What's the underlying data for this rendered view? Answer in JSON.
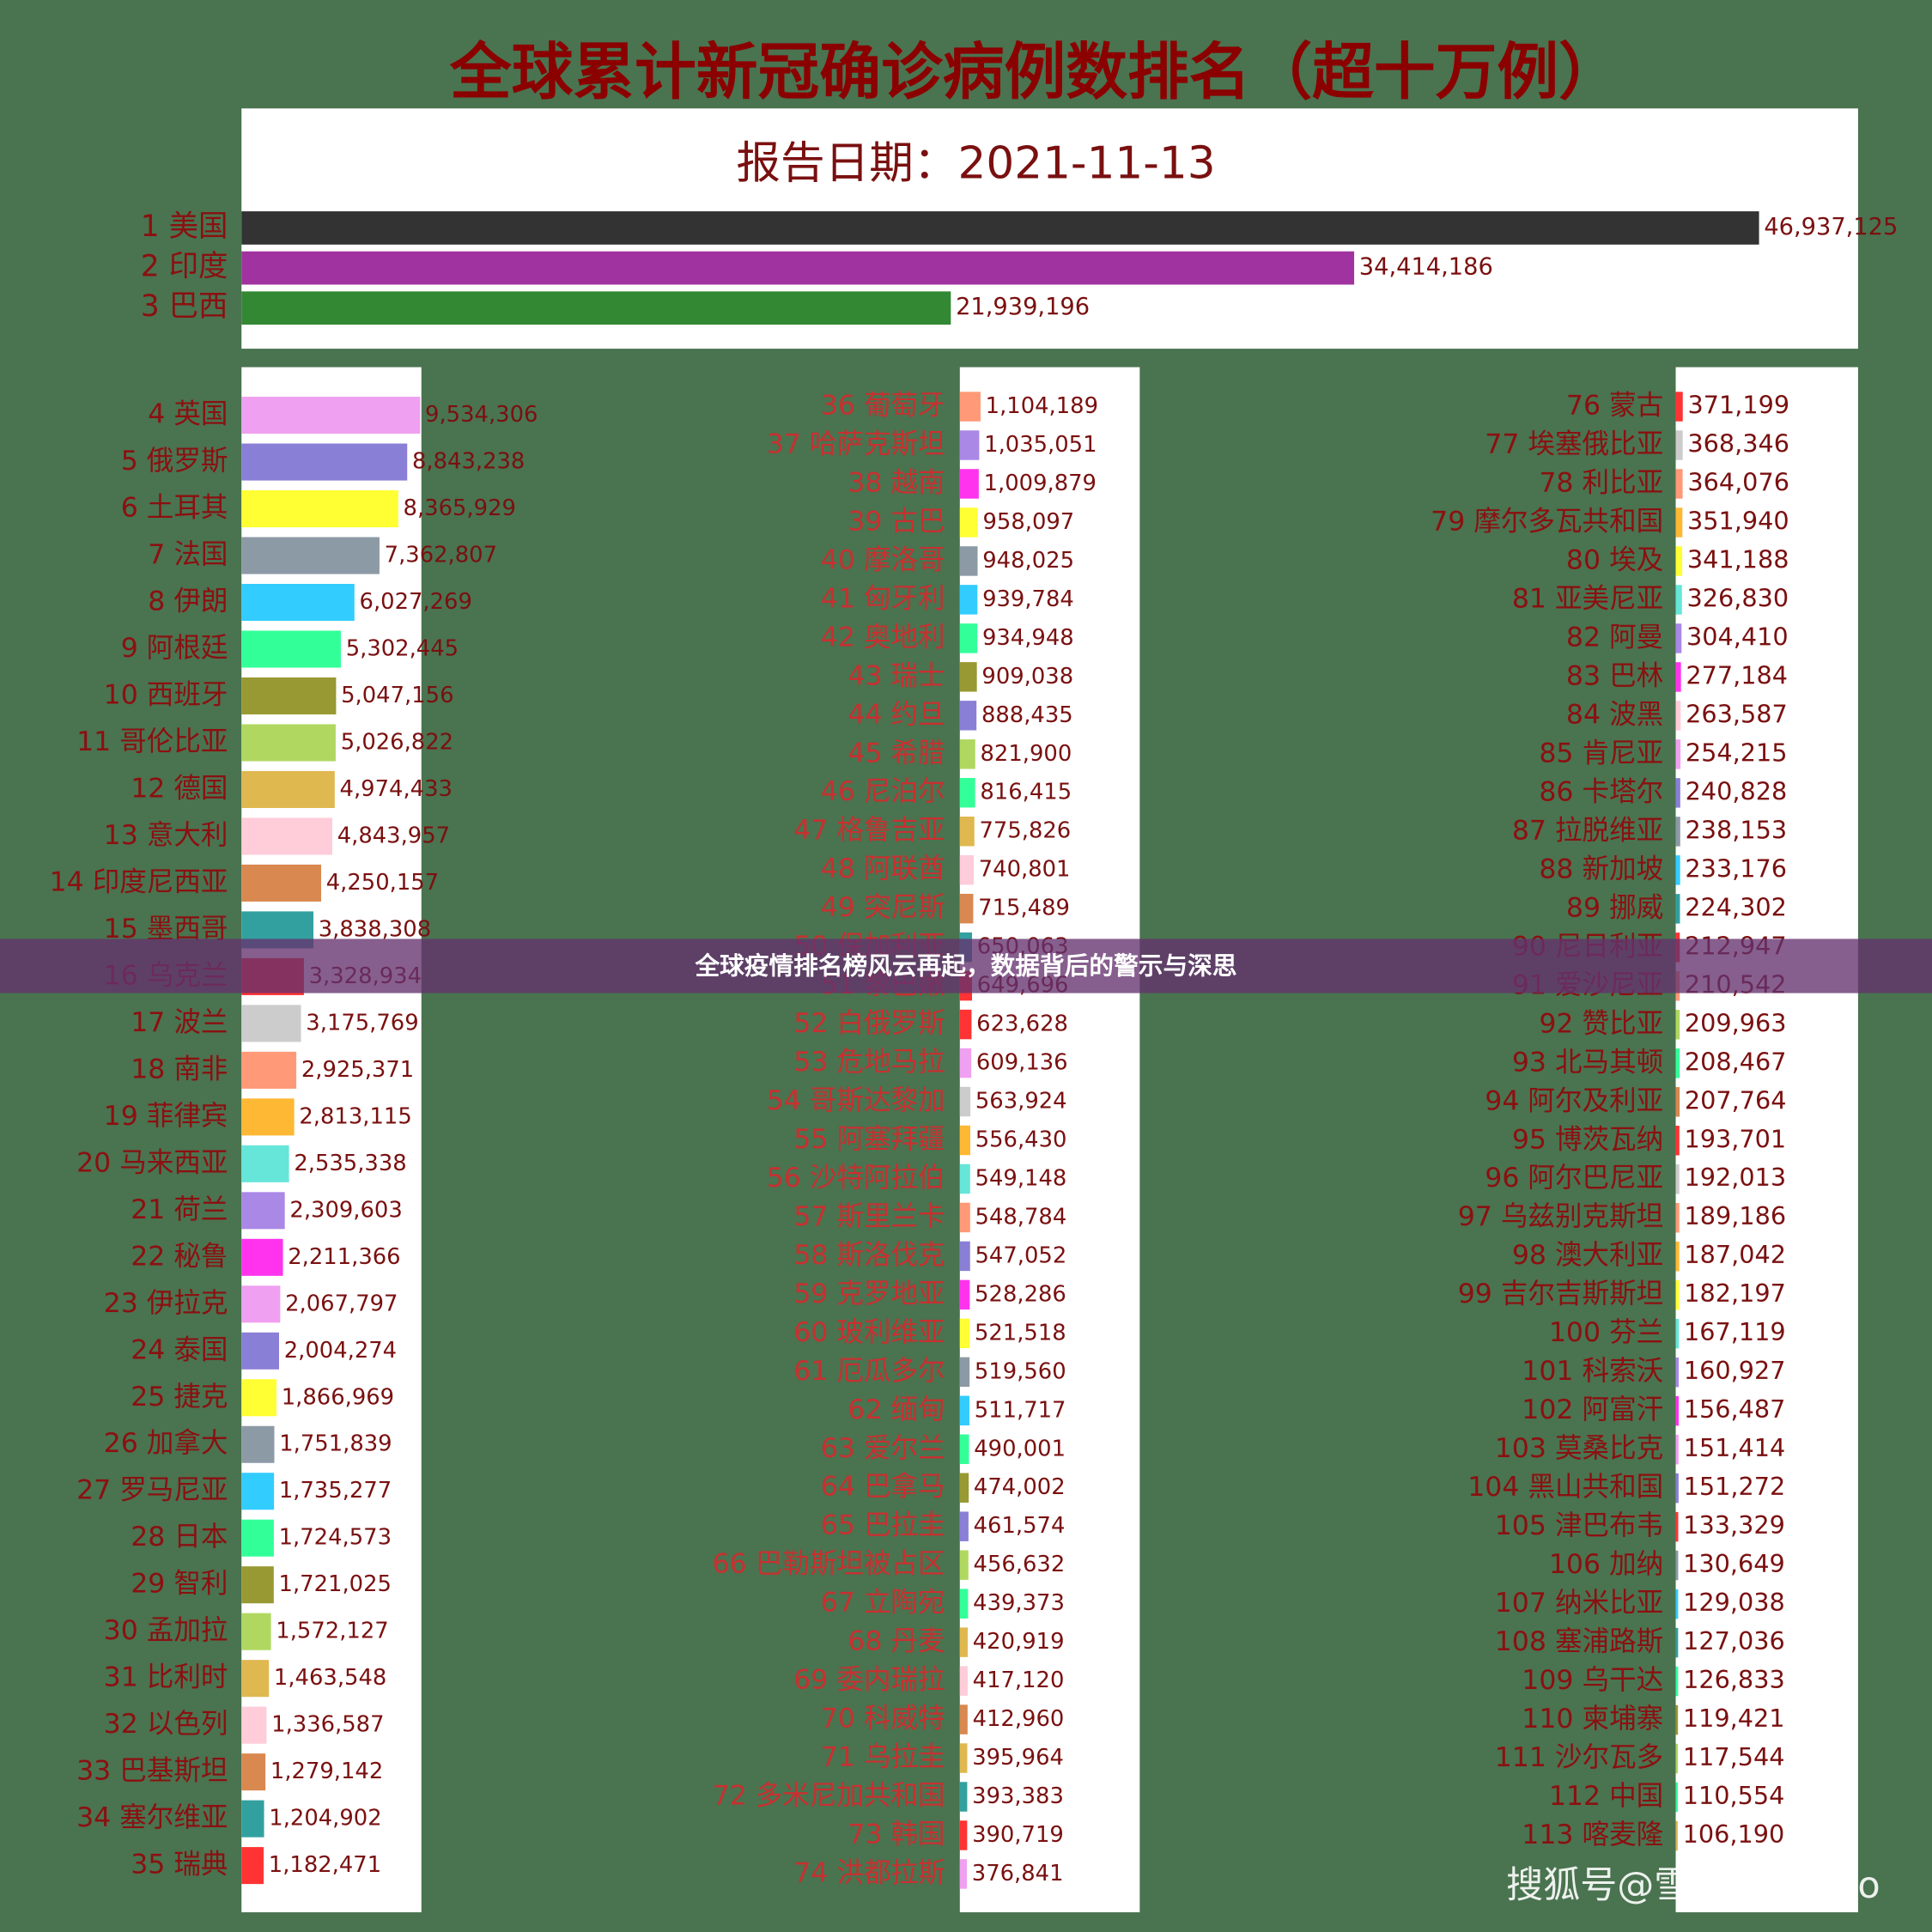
{
  "chart_data": [
    {
      "type": "bar",
      "orientation": "horizontal",
      "title": "全球累计新冠确诊病例数排名（超十万例）",
      "subtitle": "报告日期：2021-11-13",
      "categories": [
        "1 美国",
        "2 印度",
        "3 巴西"
      ],
      "values": [
        46937125,
        34414186,
        21939196
      ],
      "value_labels": [
        "46,937,125",
        "34,414,186",
        "21,939,196"
      ],
      "colors": [
        "#333333",
        "#a033a0",
        "#338833"
      ],
      "xlim": [
        0,
        50000000
      ]
    },
    {
      "type": "bar",
      "orientation": "horizontal",
      "categories": [
        "4 英国",
        "5 俄罗斯",
        "6 土耳其",
        "7 法国",
        "8 伊朗",
        "9 阿根廷",
        "10 西班牙",
        "11 哥伦比亚",
        "12 德国",
        "13 意大利",
        "14 印度尼西亚",
        "15 墨西哥",
        "16 乌克兰",
        "17 波兰",
        "18 南非",
        "19 菲律宾",
        "20 马来西亚",
        "21 荷兰",
        "22 秘鲁",
        "23 伊拉克",
        "24 泰国",
        "25 捷克",
        "26 加拿大",
        "27 罗马尼亚",
        "28 日本",
        "29 智利",
        "30 孟加拉",
        "31 比利时",
        "32 以色列",
        "33 巴基斯坦",
        "34 塞尔维亚",
        "35 瑞典"
      ],
      "values": [
        9534306,
        8843238,
        8365929,
        7362807,
        6027269,
        5302445,
        5047156,
        5026822,
        4974433,
        4843957,
        4250157,
        3838308,
        3328934,
        3175769,
        2925371,
        2813115,
        2535338,
        2309603,
        2211366,
        2067797,
        2004274,
        1866969,
        1751839,
        1735277,
        1724573,
        1721025,
        1572127,
        1463548,
        1336587,
        1279142,
        1204902,
        1182471
      ],
      "value_labels": [
        "9,534,306",
        "8,843,238",
        "8,365,929",
        "7,362,807",
        "6,027,269",
        "5,302,445",
        "5,047,156",
        "5,026,822",
        "4,974,433",
        "4,843,957",
        "4,250,157",
        "3,838,308",
        "3,328,934",
        "3,175,769",
        "2,925,371",
        "2,813,115",
        "2,535,338",
        "2,309,603",
        "2,211,366",
        "2,067,797",
        "2,004,274",
        "1,866,969",
        "1,751,839",
        "1,735,277",
        "1,724,573",
        "1,721,025",
        "1,572,127",
        "1,463,548",
        "1,336,587",
        "1,279,142",
        "1,204,902",
        "1,182,471"
      ],
      "colors": [
        "#f0a0f0",
        "#8a7fd6",
        "#ffff33",
        "#8c9aa6",
        "#33ccff",
        "#33ff99",
        "#999933",
        "#b0d860",
        "#e0b850",
        "#ffccd9",
        "#d98850",
        "#33a0a0",
        "#ff3333",
        "#cccccc",
        "#ff9977",
        "#ffb833",
        "#66e6d9",
        "#aa88e6",
        "#ff33ee",
        "#f0a0f0",
        "#8a7fd6",
        "#ffff33",
        "#8c9aa6",
        "#33ccff",
        "#33ff99",
        "#999933",
        "#b0d860",
        "#e0b850",
        "#ffccd9",
        "#d98850",
        "#33a0a0",
        "#ff3333"
      ],
      "xlim": [
        0,
        9600000
      ]
    },
    {
      "type": "bar",
      "orientation": "horizontal",
      "categories": [
        "36 葡萄牙",
        "37 哈萨克斯坦",
        "38 越南",
        "39 古巴",
        "40 摩洛哥",
        "41 匈牙利",
        "42 奥地利",
        "43 瑞士",
        "44 约旦",
        "45 希腊",
        "46 尼泊尔",
        "47 格鲁吉亚",
        "48 阿联酋",
        "49 突尼斯",
        "50 保加利亚",
        "51 黎巴嫩",
        "52 白俄罗斯",
        "53 危地马拉",
        "54 哥斯达黎加",
        "55 阿塞拜疆",
        "56 沙特阿拉伯",
        "57 斯里兰卡",
        "58 斯洛伐克",
        "59 克罗地亚",
        "60 玻利维亚",
        "61 厄瓜多尔",
        "62 缅甸",
        "63 爱尔兰",
        "64 巴拿马",
        "65 巴拉圭",
        "66 巴勒斯坦被占区",
        "67 立陶宛",
        "68 丹麦",
        "69 委内瑞拉",
        "70 科威特",
        "71 乌拉圭",
        "72 多米尼加共和国",
        "73 韩国",
        "74 洪都拉斯"
      ],
      "values": [
        1104189,
        1035051,
        1009879,
        958097,
        948025,
        939784,
        934948,
        909038,
        888435,
        821900,
        816415,
        775826,
        740801,
        715489,
        650063,
        649696,
        623628,
        609136,
        563924,
        556430,
        549148,
        548784,
        547052,
        528286,
        521518,
        519560,
        511717,
        490001,
        474002,
        461574,
        456632,
        439373,
        420919,
        417120,
        412960,
        395964,
        393383,
        390719,
        376841
      ],
      "value_labels": [
        "1,104,189",
        "1,035,051",
        "1,009,879",
        "958,097",
        "948,025",
        "939,784",
        "934,948",
        "909,038",
        "888,435",
        "821,900",
        "816,415",
        "775,826",
        "740,801",
        "715,489",
        "650,063",
        "649,696",
        "623,628",
        "609,136",
        "563,924",
        "556,430",
        "549,148",
        "548,784",
        "547,052",
        "528,286",
        "521,518",
        "519,560",
        "511,717",
        "490,001",
        "474,002",
        "461,574",
        "456,632",
        "439,373",
        "420,919",
        "417,120",
        "412,960",
        "395,964",
        "393,383",
        "390,719",
        "376,841"
      ],
      "colors": [
        "#ff9977",
        "#aa88e6",
        "#ff33ee",
        "#ffff33",
        "#8c9aa6",
        "#33ccff",
        "#33ff99",
        "#999933",
        "#8a7fd6",
        "#b0d860",
        "#33ff99",
        "#e0b850",
        "#ffccd9",
        "#d98850",
        "#33a0a0",
        "#ff3333",
        "#ff3333",
        "#f0a0f0",
        "#cccccc",
        "#ffb833",
        "#66e6d9",
        "#ff9977",
        "#8a7fd6",
        "#ff33ee",
        "#ffff33",
        "#8c9aa6",
        "#33ccff",
        "#33ff99",
        "#999933",
        "#8a7fd6",
        "#b0d860",
        "#33ff99",
        "#e0b850",
        "#ffccd9",
        "#d98850",
        "#e0b850",
        "#33a0a0",
        "#ff3333",
        "#f0a0f0"
      ],
      "xlim": [
        0,
        9600000
      ]
    },
    {
      "type": "bar",
      "orientation": "horizontal",
      "categories": [
        "76 蒙古",
        "77 埃塞俄比亚",
        "78 利比亚",
        "79 摩尔多瓦共和国",
        "80 埃及",
        "81 亚美尼亚",
        "82 阿曼",
        "83 巴林",
        "84 波黑",
        "85 肯尼亚",
        "86 卡塔尔",
        "87 拉脱维亚",
        "88 新加坡",
        "89 挪威",
        "90 尼日利亚",
        "91 爱沙尼亚",
        "92 赞比亚",
        "93 北马其顿",
        "94 阿尔及利亚",
        "95 博茨瓦纳",
        "96 阿尔巴尼亚",
        "97 乌兹别克斯坦",
        "98 澳大利亚",
        "99 吉尔吉斯斯坦",
        "100 芬兰",
        "101 科索沃",
        "102 阿富汗",
        "103 莫桑比克",
        "104 黑山共和国",
        "105 津巴布韦",
        "106 加纳",
        "107 纳米比亚",
        "108 塞浦路斯",
        "109 乌干达",
        "110 柬埔寨",
        "111 沙尔瓦多",
        "112 中国",
        "113 喀麦隆"
      ],
      "values": [
        371199,
        368346,
        364076,
        351940,
        341188,
        326830,
        304410,
        277184,
        263587,
        254215,
        240828,
        238153,
        233176,
        224302,
        212947,
        210542,
        209963,
        208467,
        207764,
        193701,
        192013,
        189186,
        187042,
        182197,
        167119,
        160927,
        156487,
        151414,
        151272,
        133329,
        130649,
        129038,
        127036,
        126833,
        119421,
        117544,
        110554,
        106190
      ],
      "value_labels": [
        "371,199",
        "368,346",
        "364,076",
        "351,940",
        "341,188",
        "326,830",
        "304,410",
        "277,184",
        "263,587",
        "254,215",
        "240,828",
        "238,153",
        "233,176",
        "224,302",
        "212,947",
        "210,542",
        "209,963",
        "208,467",
        "207,764",
        "193,701",
        "192,013",
        "189,186",
        "187,042",
        "182,197",
        "167,119",
        "160,927",
        "156,487",
        "151,414",
        "151,272",
        "133,329",
        "130,649",
        "129,038",
        "127,036",
        "126,833",
        "119,421",
        "117,544",
        "110,554",
        "106,190"
      ],
      "colors": [
        "#ff3333",
        "#cccccc",
        "#ff9977",
        "#ffb833",
        "#ffff33",
        "#66e6d9",
        "#aa88e6",
        "#ff33ee",
        "#ffccd9",
        "#f0a0f0",
        "#8a7fd6",
        "#8c9aa6",
        "#33ccff",
        "#33a0a0",
        "#ff3333",
        "#ff9977",
        "#b0d860",
        "#33ff99",
        "#d98850",
        "#ff3333",
        "#cccccc",
        "#ff9977",
        "#ffb833",
        "#ffff33",
        "#66e6d9",
        "#aa88e6",
        "#ff33ee",
        "#f0a0f0",
        "#8a7fd6",
        "#ff3333",
        "#8c9aa6",
        "#33ccff",
        "#33a0a0",
        "#33ff99",
        "#999933",
        "#b0d860",
        "#33ff99",
        "#e0b850"
      ],
      "xlim": [
        0,
        9600000
      ]
    }
  ],
  "banner": "全球疫情排名榜风云再起，数据背后的警示与深思",
  "watermark": "搜狐号@雪鸮XueXiao"
}
